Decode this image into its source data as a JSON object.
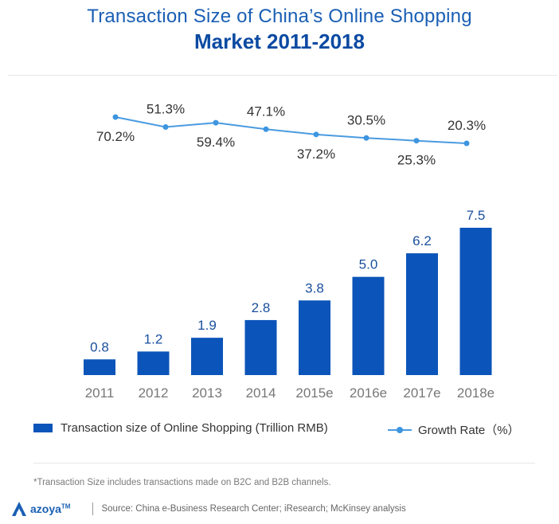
{
  "title": {
    "line1": "Transaction Size of China’s Online Shopping",
    "line2": "Market 2011-2018"
  },
  "legend": {
    "bar_label": "Transaction size of Online Shopping (Trillion RMB)",
    "line_label": "Growth Rate（%）"
  },
  "footnote": "*Transaction Size includes transactions made on B2C and B2B channels.",
  "footer": {
    "logo_text": "azoya",
    "logo_tm": "TM",
    "source": "Source: China e-Business Research Center; iResearch; McKinsey analysis"
  },
  "colors": {
    "bar": "#0b54b9",
    "line": "#4a9be0",
    "marker": "#3d95e0",
    "title": "#1a5fb4",
    "bar_label": "#1a4f9c",
    "tick_label": "#777777",
    "growth_label": "#333333"
  },
  "chart_data": {
    "type": "bar",
    "title": "Transaction Size of China’s Online Shopping Market 2011-2018",
    "categories": [
      "2011",
      "2012",
      "2013",
      "2014",
      "2015e",
      "2016e",
      "2017e",
      "2018e"
    ],
    "series": [
      {
        "name": "Transaction size of Online Shopping (Trillion RMB)",
        "type": "bar",
        "values": [
          0.8,
          1.2,
          1.9,
          2.8,
          3.8,
          5.0,
          6.2,
          7.5
        ],
        "labels": [
          "0.8",
          "1.2",
          "1.9",
          "2.8",
          "3.8",
          "5.0",
          "6.2",
          "7.5"
        ]
      },
      {
        "name": "Growth Rate（%）",
        "type": "line",
        "values": [
          70.2,
          51.3,
          59.4,
          47.1,
          37.2,
          30.5,
          25.3,
          20.3
        ],
        "labels": [
          "70.2%",
          "51.3%",
          "59.4%",
          "47.1%",
          "37.2%",
          "30.5%",
          "25.3%",
          "20.3%"
        ],
        "label_positions": [
          "below",
          "above",
          "below",
          "above",
          "below",
          "above",
          "below",
          "above"
        ]
      }
    ],
    "xlabel": "",
    "ylabel": "",
    "ylim": [
      0,
      7.5
    ],
    "grid": false,
    "legend_position": "bottom"
  }
}
